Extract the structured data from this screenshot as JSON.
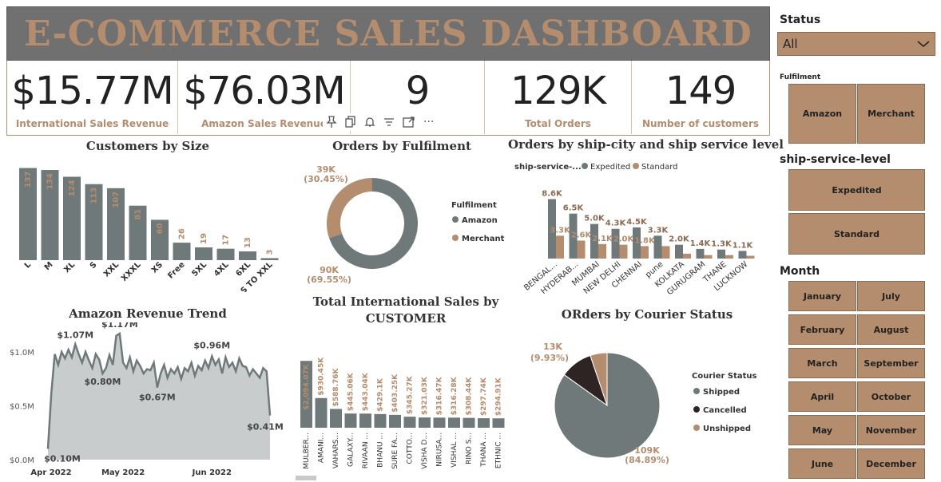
{
  "header": {
    "title": "E-COMMERCE SALES DASHBOARD"
  },
  "kpis": [
    {
      "value": "$15.77M",
      "label": "International Sales Revenue"
    },
    {
      "value": "$76.03M",
      "label": "Amazon Sales Revenue"
    },
    {
      "value": "9",
      "label": ""
    },
    {
      "value": "129K",
      "label": "Total Orders"
    },
    {
      "value": "149",
      "label": "Number of customers"
    }
  ],
  "toolbar": {
    "icons": [
      "pin-icon",
      "copy-icon",
      "bell-icon",
      "filter-icon",
      "expand-icon",
      "more-icon"
    ],
    "more": "···"
  },
  "charts": {
    "size": {
      "title": "Customers by Size"
    },
    "fulfilment": {
      "title": "Orders by Fulfilment",
      "legend_title": "Fulfilment"
    },
    "city": {
      "title": "Orders by ship-city and ship service level",
      "legend_title": "ship-service-..."
    },
    "trend": {
      "title": "Amazon Revenue Trend"
    },
    "intl": {
      "title_line1": "Total International Sales by",
      "title_line2": "CUSTOMER"
    },
    "courier": {
      "title": "ORders by Courier Status",
      "legend_title": "Courier Status"
    }
  },
  "chart_data": [
    {
      "id": "size",
      "type": "bar",
      "title": "Customers by Size",
      "categories": [
        "L",
        "M",
        "XL",
        "S",
        "XXL",
        "XXXL",
        "XS",
        "Free",
        "5XL",
        "4XL",
        "6XL",
        "S TO XXL"
      ],
      "values": [
        137,
        134,
        124,
        113,
        107,
        81,
        60,
        26,
        19,
        17,
        13,
        3
      ],
      "ylim": [
        0,
        140
      ],
      "color": "#6f7979"
    },
    {
      "id": "fulfilment",
      "type": "pie",
      "donut": true,
      "title": "Orders by Fulfilment",
      "labels": [
        "Amazon",
        "Merchant"
      ],
      "values": [
        90,
        39
      ],
      "value_labels": [
        "90K",
        "39K"
      ],
      "percent_labels": [
        "(69.55%)",
        "(30.45%)"
      ],
      "colors": [
        "#6f7979",
        "#b48c6e"
      ]
    },
    {
      "id": "city",
      "type": "bar",
      "title": "Orders by ship-city and ship service level",
      "categories": [
        "BENGAL...",
        "HYDERAB...",
        "MUMBAI",
        "NEW DELHI",
        "CHENNAI",
        "pune",
        "KOLKATA",
        "GURUGRAM",
        "THANE",
        "LUCKNOW"
      ],
      "series": [
        {
          "name": "Expedited",
          "values": [
            8.6,
            6.5,
            5.0,
            4.3,
            4.5,
            3.3,
            2.0,
            1.4,
            1.3,
            1.1
          ],
          "labels": [
            "8.6K",
            "6.5K",
            "5.0K",
            "4.3K",
            "4.5K",
            "3.3K",
            "2.0K",
            "1.4K",
            "1.3K",
            "1.1K"
          ],
          "color": "#6f7979"
        },
        {
          "name": "Standard",
          "values": [
            3.3,
            2.6,
            2.1,
            2.0,
            1.8,
            1.8,
            0.7,
            0.5,
            0.5,
            0.4
          ],
          "labels": [
            "3.3K",
            "2.6K",
            "2.1K",
            "2.0K",
            "1.8K",
            "",
            "",
            "",
            "",
            ""
          ],
          "color": "#b48c6e"
        }
      ],
      "ylim": [
        0,
        9
      ]
    },
    {
      "id": "trend",
      "type": "area",
      "title": "Amazon Revenue Trend",
      "x_ticks": [
        "Apr 2022",
        "May 2022",
        "Jun 2022"
      ],
      "y_ticks": [
        "$0.0M",
        "$0.5M",
        "$1.0M"
      ],
      "ylim": [
        0,
        1.2
      ],
      "values": [
        0.1,
        0.62,
        0.98,
        0.88,
        1.0,
        0.94,
        1.02,
        0.95,
        1.07,
        0.98,
        0.9,
        1.0,
        0.92,
        0.85,
        0.98,
        0.93,
        0.8,
        0.85,
        0.97,
        0.88,
        1.15,
        1.17,
        0.9,
        0.85,
        0.95,
        0.82,
        0.92,
        0.87,
        0.8,
        0.84,
        0.83,
        0.9,
        0.67,
        0.8,
        0.88,
        0.76,
        0.84,
        0.8,
        0.86,
        0.75,
        0.85,
        0.82,
        0.9,
        0.78,
        0.87,
        0.83,
        0.92,
        0.85,
        0.96,
        0.88,
        0.93,
        0.8,
        0.95,
        0.86,
        0.9,
        0.82,
        0.94,
        0.87,
        0.86,
        0.78,
        0.84,
        0.8,
        0.76,
        0.85,
        0.82,
        0.41
      ],
      "annotations": [
        {
          "index": 0,
          "label": "$0.10M"
        },
        {
          "index": 8,
          "label": "$1.07M"
        },
        {
          "index": 21,
          "label": "$1.17M"
        },
        {
          "index": 16,
          "label": "$0.80M"
        },
        {
          "index": 32,
          "label": "$0.67M"
        },
        {
          "index": 48,
          "label": "$0.96M"
        },
        {
          "index": 65,
          "label": "$0.41M"
        }
      ],
      "color": "#6f7979",
      "fill": "#c9cccc"
    },
    {
      "id": "intl",
      "type": "bar",
      "title": "Total International Sales by CUSTOMER",
      "categories": [
        "MULBER...",
        "AMANI...",
        "VAHARS...",
        "GALAXY...",
        "RIVAAN ...",
        "BHANU ...",
        "SURE FA...",
        "COTTO...",
        "VISHA D...",
        "NIRUSA...",
        "VISHAL ...",
        "RINO S...",
        "THANA ...",
        "ETHNIC ..."
      ],
      "values": [
        2094.07,
        930.45,
        588.76,
        445.06,
        443.04,
        429.1,
        403.25,
        345.27,
        321.03,
        316.47,
        316.28,
        308.44,
        297.74,
        294.91
      ],
      "value_labels": [
        "$2,094.07K",
        "$930.45K",
        "$588.76K",
        "$445.06K",
        "$443.04K",
        "$429.1K",
        "$403.25K",
        "$345.27K",
        "$321.03K",
        "$316.47K",
        "$316.28K",
        "$308.44K",
        "$297.74K",
        "$294.91K"
      ],
      "ylim": [
        0,
        2200
      ],
      "color": "#6f7979"
    },
    {
      "id": "courier",
      "type": "pie",
      "title": "ORders by Courier Status",
      "labels": [
        "Shipped",
        "Cancelled",
        "Unshipped"
      ],
      "values": [
        84.89,
        9.93,
        5.18
      ],
      "value_labels": [
        "109K",
        "13K",
        ""
      ],
      "percent_labels": [
        "(84.89%)",
        "(9.93%)",
        ""
      ],
      "colors": [
        "#6f7979",
        "#2e2424",
        "#b48c6e"
      ]
    }
  ],
  "slicers": {
    "status": {
      "title": "Status",
      "value": "All"
    },
    "fulfilment": {
      "title": "Fulfilment",
      "items": [
        "Amazon",
        "Merchant"
      ]
    },
    "service": {
      "title": "ship-service-level",
      "items": [
        "Expedited",
        "Standard"
      ]
    },
    "month": {
      "title": "Month",
      "items": [
        "January",
        "July",
        "February",
        "August",
        "March",
        "September",
        "April",
        "October",
        "May",
        "November",
        "June",
        "December"
      ]
    }
  }
}
